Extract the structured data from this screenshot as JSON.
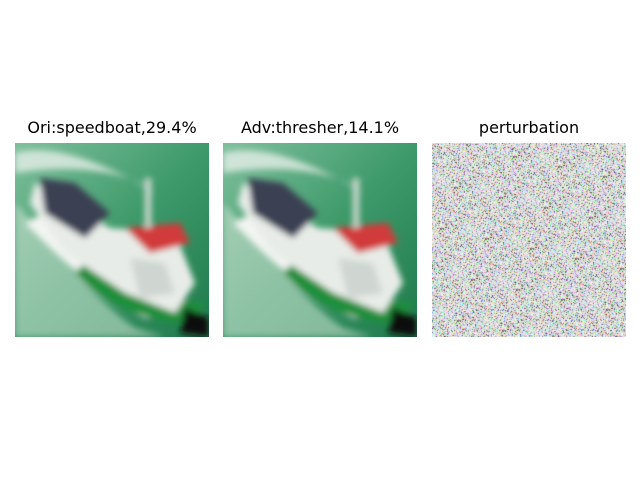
{
  "panels": [
    {
      "title": "Ori:speedboat,29.4%",
      "kind": "photo",
      "subject": "boat"
    },
    {
      "title": "Adv:thresher,14.1%",
      "kind": "photo",
      "subject": "boat"
    },
    {
      "title": "perturbation",
      "kind": "noise"
    }
  ],
  "colors": {
    "sea": "#2f8a5c",
    "sea_light": "#6fb592",
    "hull_green": "#1f8f3a",
    "hull_white": "#e8ece8",
    "cabin_red": "#d23a3a",
    "deck_dark": "#3a3f52"
  }
}
